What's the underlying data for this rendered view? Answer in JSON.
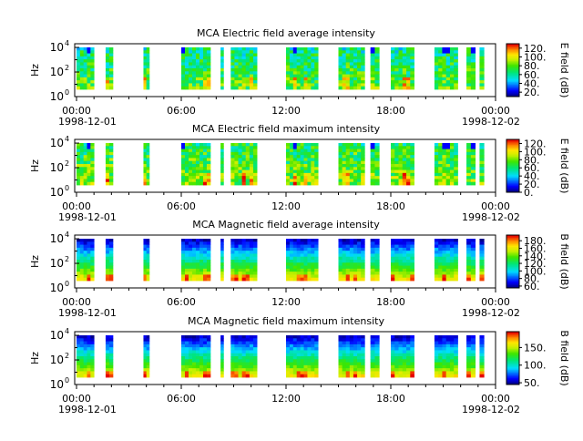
{
  "chart_data": [
    {
      "type": "heatmap",
      "title": "MCA  Electric field average intensity",
      "ylabel": "Hz",
      "yscale": "log",
      "ylim": [
        1,
        20000
      ],
      "y_ticks": [
        1,
        100,
        10000
      ],
      "x_ticks": [
        "00:00",
        "06:00",
        "12:00",
        "18:00",
        "00:00"
      ],
      "x_start_date": "1998-12-01",
      "x_end_date": "1998-12-02",
      "xlim": [
        "1998-12-01 00:00",
        "1998-12-02 00:00"
      ],
      "colorbar": {
        "label": "E field (dB)",
        "ticks": [
          "20.",
          "40.",
          "60.",
          "80.",
          "100.",
          "120."
        ],
        "range": [
          10,
          130
        ]
      },
      "intervals": [
        [
          "00:00",
          "01:00"
        ],
        [
          "01:40",
          "02:05"
        ],
        [
          "03:50",
          "04:10"
        ],
        [
          "06:00",
          "07:40"
        ],
        [
          "08:15",
          "08:25"
        ],
        [
          "08:50",
          "10:20"
        ],
        [
          "12:00",
          "13:50"
        ],
        [
          "15:00",
          "16:30"
        ],
        [
          "16:50",
          "17:20"
        ],
        [
          "18:00",
          "19:20"
        ],
        [
          "20:30",
          "21:50"
        ],
        [
          "22:20",
          "22:50"
        ],
        [
          "23:05",
          "23:20"
        ]
      ],
      "colormap": "jet-like (blue low, red high)"
    },
    {
      "type": "heatmap",
      "title": "MCA  Electric field maximum intensity",
      "ylabel": "Hz",
      "yscale": "log",
      "ylim": [
        1,
        20000
      ],
      "y_ticks": [
        1,
        100,
        10000
      ],
      "x_ticks": [
        "00:00",
        "06:00",
        "12:00",
        "18:00",
        "00:00"
      ],
      "x_start_date": "1998-12-01",
      "x_end_date": "1998-12-02",
      "xlim": [
        "1998-12-01 00:00",
        "1998-12-02 00:00"
      ],
      "colorbar": {
        "label": "E field (dB)",
        "ticks": [
          "0.",
          "20.",
          "40.",
          "60.",
          "80.",
          "100.",
          "120."
        ],
        "range": [
          0,
          130
        ]
      },
      "intervals": [
        [
          "00:00",
          "01:00"
        ],
        [
          "01:40",
          "02:05"
        ],
        [
          "03:50",
          "04:10"
        ],
        [
          "06:00",
          "07:40"
        ],
        [
          "08:15",
          "08:25"
        ],
        [
          "08:50",
          "10:20"
        ],
        [
          "12:00",
          "13:50"
        ],
        [
          "15:00",
          "16:30"
        ],
        [
          "16:50",
          "17:20"
        ],
        [
          "18:00",
          "19:20"
        ],
        [
          "20:30",
          "21:50"
        ],
        [
          "22:20",
          "22:50"
        ],
        [
          "23:05",
          "23:20"
        ]
      ],
      "colormap": "jet-like (blue low, red high)"
    },
    {
      "type": "heatmap",
      "title": "MCA  Magnetic field average intensity",
      "ylabel": "Hz",
      "yscale": "log",
      "ylim": [
        1,
        20000
      ],
      "y_ticks": [
        1,
        100,
        10000
      ],
      "x_ticks": [
        "00:00",
        "06:00",
        "12:00",
        "18:00",
        "00:00"
      ],
      "x_start_date": "1998-12-01",
      "x_end_date": "1998-12-02",
      "xlim": [
        "1998-12-01 00:00",
        "1998-12-02 00:00"
      ],
      "colorbar": {
        "label": "B field (dB)",
        "ticks": [
          "60.",
          "80.",
          "100.",
          "120.",
          "140.",
          "160.",
          "180."
        ],
        "range": [
          55,
          195
        ]
      },
      "intervals": [
        [
          "00:00",
          "01:00"
        ],
        [
          "01:40",
          "02:05"
        ],
        [
          "03:50",
          "04:10"
        ],
        [
          "06:00",
          "07:40"
        ],
        [
          "08:15",
          "08:25"
        ],
        [
          "08:50",
          "10:20"
        ],
        [
          "12:00",
          "13:50"
        ],
        [
          "15:00",
          "16:30"
        ],
        [
          "16:50",
          "17:20"
        ],
        [
          "18:00",
          "19:20"
        ],
        [
          "20:30",
          "21:50"
        ],
        [
          "22:20",
          "22:50"
        ],
        [
          "23:05",
          "23:20"
        ]
      ],
      "colormap": "jet-like (blue low, red high)"
    },
    {
      "type": "heatmap",
      "title": "MCA  Magnetic field maximum intensity",
      "ylabel": "Hz",
      "yscale": "log",
      "ylim": [
        1,
        20000
      ],
      "y_ticks": [
        1,
        100,
        10000
      ],
      "x_ticks": [
        "00:00",
        "06:00",
        "12:00",
        "18:00",
        "00:00"
      ],
      "x_start_date": "1998-12-01",
      "x_end_date": "1998-12-02",
      "xlim": [
        "1998-12-01 00:00",
        "1998-12-02 00:00"
      ],
      "colorbar": {
        "label": "B field (dB)",
        "ticks": [
          "50.",
          "100.",
          "150."
        ],
        "range": [
          45,
          195
        ]
      },
      "intervals": [
        [
          "00:00",
          "01:00"
        ],
        [
          "01:40",
          "02:05"
        ],
        [
          "03:50",
          "04:10"
        ],
        [
          "06:00",
          "07:40"
        ],
        [
          "08:15",
          "08:25"
        ],
        [
          "08:50",
          "10:20"
        ],
        [
          "12:00",
          "13:50"
        ],
        [
          "15:00",
          "16:30"
        ],
        [
          "16:50",
          "17:20"
        ],
        [
          "18:00",
          "19:20"
        ],
        [
          "20:30",
          "21:50"
        ],
        [
          "22:20",
          "22:50"
        ],
        [
          "23:05",
          "23:20"
        ]
      ],
      "colormap": "jet-like (blue low, red high)"
    }
  ]
}
